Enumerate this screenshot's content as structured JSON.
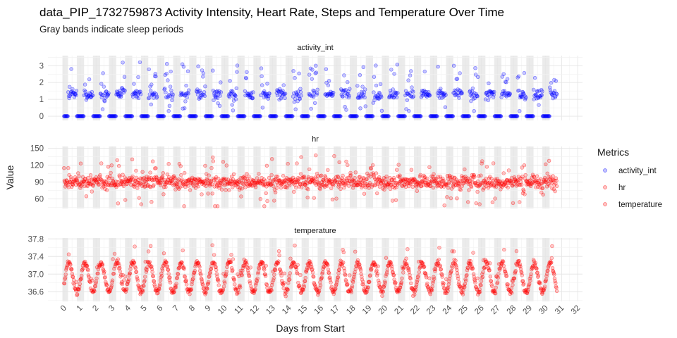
{
  "chart_data": {
    "type": "scatter",
    "title": "data_PIP_1732759873 Activity Intensity, Heart Rate, Steps and Temperature Over Time",
    "subtitle": "Gray bands indicate sleep periods",
    "xlabel": "Days from Start",
    "ylabel": "Value",
    "xlim": [
      -1.0,
      32.3
    ],
    "x_ticks": [
      0,
      1,
      2,
      3,
      4,
      5,
      6,
      7,
      8,
      9,
      10,
      11,
      12,
      13,
      14,
      15,
      16,
      17,
      18,
      19,
      20,
      21,
      22,
      23,
      24,
      25,
      26,
      27,
      28,
      29,
      30,
      31,
      32
    ],
    "grid": true,
    "legend": {
      "title": "Metrics",
      "position": "right",
      "entries": [
        {
          "label": "activity_int",
          "color": "#0000ff"
        },
        {
          "label": "hr",
          "color": "#ff0000"
        },
        {
          "label": "temperature",
          "color": "#ff0000"
        }
      ]
    },
    "sleep_bands": [
      [
        -0.1,
        0.25
      ],
      [
        0.8,
        1.25
      ],
      [
        1.8,
        2.25
      ],
      [
        2.8,
        3.25
      ],
      [
        3.8,
        4.25
      ],
      [
        4.8,
        5.25
      ],
      [
        5.8,
        6.25
      ],
      [
        6.8,
        7.25
      ],
      [
        7.8,
        8.25
      ],
      [
        8.8,
        9.25
      ],
      [
        9.8,
        10.25
      ],
      [
        10.8,
        11.25
      ],
      [
        11.8,
        12.25
      ],
      [
        12.8,
        13.25
      ],
      [
        13.8,
        14.25
      ],
      [
        14.8,
        15.25
      ],
      [
        15.8,
        16.25
      ],
      [
        16.8,
        17.25
      ],
      [
        17.8,
        18.25
      ],
      [
        18.8,
        19.25
      ],
      [
        19.8,
        20.25
      ],
      [
        20.8,
        21.25
      ],
      [
        21.8,
        22.25
      ],
      [
        22.8,
        23.25
      ],
      [
        23.8,
        24.25
      ],
      [
        24.8,
        25.25
      ],
      [
        25.8,
        26.25
      ],
      [
        26.8,
        27.25
      ],
      [
        27.8,
        28.25
      ],
      [
        28.8,
        29.25
      ],
      [
        29.8,
        30.25
      ]
    ],
    "panels": [
      {
        "name": "activity_int",
        "color": "#0000ff",
        "ylim": [
          -0.25,
          3.6
        ],
        "y_ticks": [
          0,
          1,
          2,
          3
        ],
        "y_tick_labels": [
          "0",
          "1",
          "2",
          "3"
        ],
        "pattern": "awake values around 1.3 (range 0.5 to 3.5); sleep values at 0",
        "x_range": [
          0,
          30.7
        ]
      },
      {
        "name": "hr",
        "color": "#ff0000",
        "ylim": [
          43,
          153
        ],
        "y_ticks": [
          60,
          90,
          120,
          150
        ],
        "y_tick_labels": [
          "60",
          "90",
          "120",
          "150"
        ],
        "pattern": "around 90 with spread 50 to 150",
        "x_range": [
          0,
          30.7
        ]
      },
      {
        "name": "temperature",
        "color": "#ff0000",
        "ylim": [
          36.38,
          37.82
        ],
        "y_ticks": [
          36.6,
          37.0,
          37.4,
          37.8
        ],
        "y_tick_labels": [
          "36.6",
          "37.0",
          "37.4",
          "37.8"
        ],
        "pattern": "daily cycle between 36.55 and 37.3",
        "x_range": [
          0,
          30.7
        ]
      }
    ]
  }
}
